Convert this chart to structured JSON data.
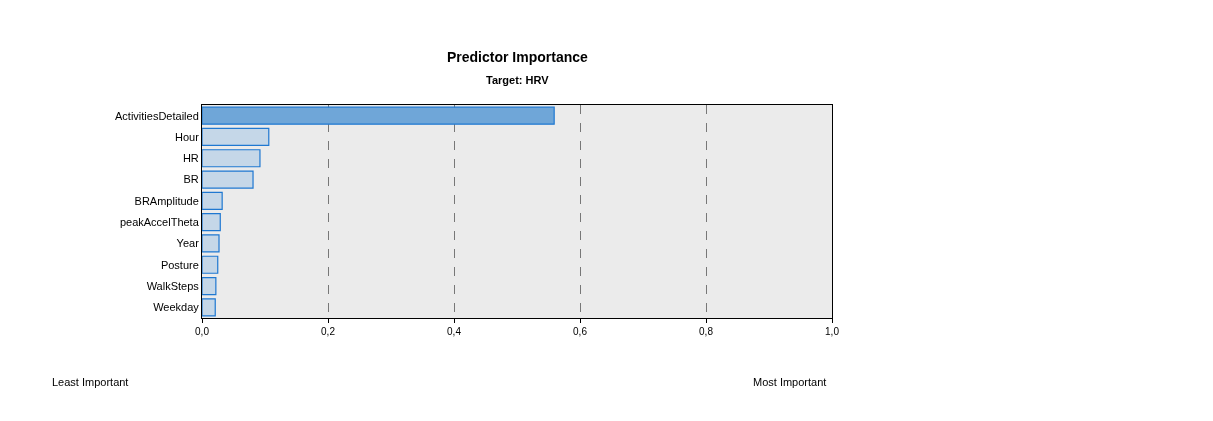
{
  "chart_data": {
    "type": "bar",
    "orientation": "horizontal",
    "title": "Predictor Importance",
    "subtitle": "Target: HRV",
    "categories": [
      "ActivitiesDetailed",
      "Hour",
      "HR",
      "BR",
      "BRAmplitude",
      "peakAccelTheta",
      "Year",
      "Posture",
      "WalkSteps",
      "Weekday"
    ],
    "values": [
      0.559,
      0.106,
      0.092,
      0.081,
      0.032,
      0.029,
      0.027,
      0.025,
      0.022,
      0.021
    ],
    "colors": [
      "#6fa6d8",
      "#c5d7e8",
      "#c5d7e8",
      "#c5d7e8",
      "#c5d7e8",
      "#c5d7e8",
      "#c5d7e8",
      "#c5d7e8",
      "#c5d7e8",
      "#c5d7e8"
    ],
    "xlim": [
      0,
      1
    ],
    "xticks": [
      {
        "value": 0,
        "label": "0,0"
      },
      {
        "value": 0.2,
        "label": "0,2"
      },
      {
        "value": 0.4,
        "label": "0,4"
      },
      {
        "value": 0.6,
        "label": "0,6"
      },
      {
        "value": 0.8,
        "label": "0,8"
      },
      {
        "value": 1,
        "label": "1,0"
      }
    ],
    "grid": "x",
    "annotations": [
      "Least Important",
      "Most Important"
    ]
  }
}
